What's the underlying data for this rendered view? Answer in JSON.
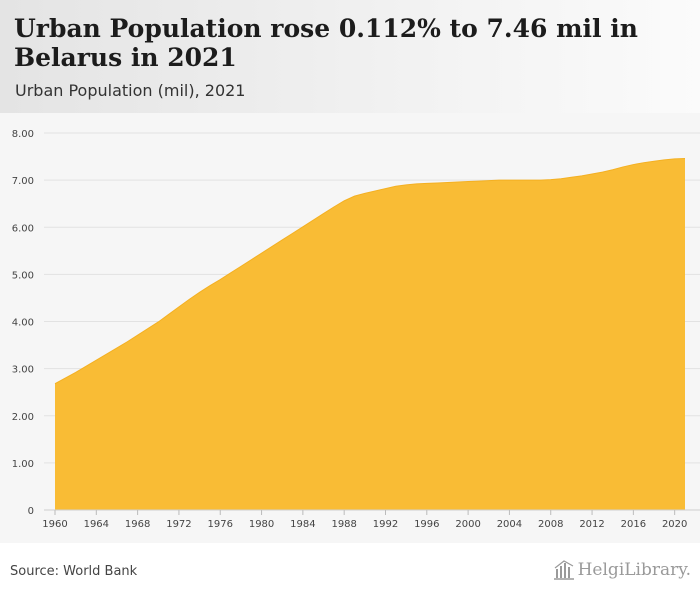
{
  "header": {
    "title": "Urban Population rose 0.112% to 7.46 mil in Belarus in 2021",
    "subtitle": "Urban Population (mil), 2021"
  },
  "footer": {
    "source": "Source: World Bank",
    "logo_text": "HelgiLibrary."
  },
  "colors": {
    "area_fill": "#f9bc35",
    "area_stroke": "#f4b022",
    "grid": "#e2e2e2",
    "tick_text": "#444444"
  },
  "chart_data": {
    "type": "area",
    "title": "Urban Population rose 0.112% to 7.46 mil in Belarus in 2021",
    "subtitle": "Urban Population (mil), 2021",
    "xlabel": "",
    "ylabel": "",
    "ylim": [
      0,
      8
    ],
    "xlim": [
      1960,
      2021
    ],
    "grid": true,
    "y_ticks": [
      0,
      1,
      2,
      3,
      4,
      5,
      6,
      7,
      8
    ],
    "y_tick_labels": [
      "0",
      "1.00",
      "2.00",
      "3.00",
      "4.00",
      "5.00",
      "6.00",
      "7.00",
      "8.00"
    ],
    "x_ticks": [
      1960,
      1964,
      1968,
      1972,
      1976,
      1980,
      1984,
      1988,
      1992,
      1996,
      2000,
      2004,
      2008,
      2012,
      2016,
      2020
    ],
    "x_tick_labels": [
      "1960",
      "1964",
      "1968",
      "1972",
      "1976",
      "1980",
      "1984",
      "1988",
      "1992",
      "1996",
      "2000",
      "2004",
      "2008",
      "2012",
      "2016",
      "2020"
    ],
    "series": [
      {
        "name": "Urban Population (mil)",
        "x": [
          1960,
          1961,
          1962,
          1963,
          1964,
          1965,
          1966,
          1967,
          1968,
          1969,
          1970,
          1971,
          1972,
          1973,
          1974,
          1975,
          1976,
          1977,
          1978,
          1979,
          1980,
          1981,
          1982,
          1983,
          1984,
          1985,
          1986,
          1987,
          1988,
          1989,
          1990,
          1991,
          1992,
          1993,
          1994,
          1995,
          1996,
          1997,
          1998,
          1999,
          2000,
          2001,
          2002,
          2003,
          2004,
          2005,
          2006,
          2007,
          2008,
          2009,
          2010,
          2011,
          2012,
          2013,
          2014,
          2015,
          2016,
          2017,
          2018,
          2019,
          2020,
          2021
        ],
        "values": [
          2.68,
          2.8,
          2.92,
          3.05,
          3.18,
          3.31,
          3.44,
          3.57,
          3.71,
          3.85,
          3.99,
          4.15,
          4.31,
          4.47,
          4.62,
          4.76,
          4.89,
          5.03,
          5.17,
          5.31,
          5.45,
          5.59,
          5.73,
          5.87,
          6.01,
          6.15,
          6.29,
          6.43,
          6.56,
          6.66,
          6.72,
          6.77,
          6.82,
          6.87,
          6.9,
          6.92,
          6.93,
          6.94,
          6.95,
          6.96,
          6.97,
          6.98,
          6.99,
          7.0,
          7.0,
          7.0,
          7.0,
          7.0,
          7.01,
          7.03,
          7.06,
          7.09,
          7.13,
          7.17,
          7.22,
          7.28,
          7.33,
          7.37,
          7.4,
          7.43,
          7.45,
          7.46
        ]
      }
    ]
  }
}
